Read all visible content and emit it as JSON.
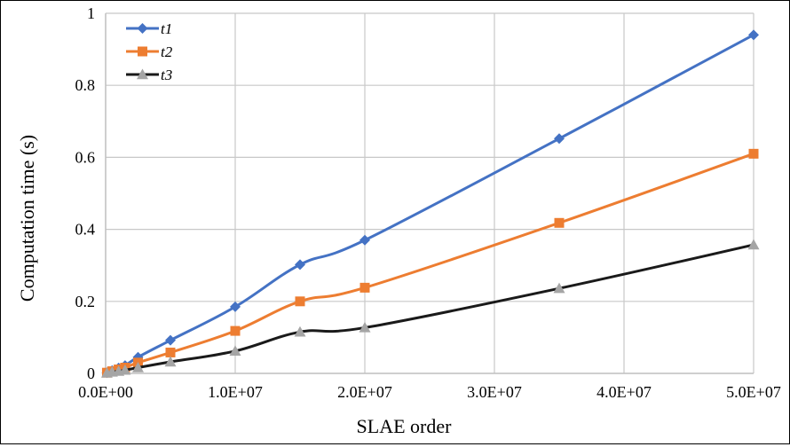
{
  "chart_data": {
    "type": "line",
    "title": "",
    "xlabel": "SLAE order",
    "ylabel": "Computation time (s)",
    "xlim": [
      0,
      50000000
    ],
    "ylim": [
      0,
      1
    ],
    "grid": true,
    "legend_position": "top-left",
    "x_tick_values": [
      0,
      10000000,
      20000000,
      30000000,
      40000000,
      50000000
    ],
    "x_tick_labels": [
      "0.0E+00",
      "1.0E+07",
      "2.0E+07",
      "3.0E+07",
      "4.0E+07",
      "5.0E+07"
    ],
    "y_tick_values": [
      0,
      0.2,
      0.4,
      0.6,
      0.8,
      1
    ],
    "y_tick_labels": [
      "0",
      "0.2",
      "0.4",
      "0.6",
      "0.8",
      "1"
    ],
    "series": [
      {
        "name": "t1",
        "color": "#4472C4",
        "marker": "diamond",
        "x": [
          100000,
          500000,
          1000000,
          1500000,
          2500000,
          5000000,
          10000000,
          15000000,
          20000000,
          35000000,
          50000000
        ],
        "y": [
          0.002,
          0.008,
          0.015,
          0.022,
          0.045,
          0.092,
          0.185,
          0.302,
          0.37,
          0.652,
          0.94
        ]
      },
      {
        "name": "t2",
        "color": "#ED7D31",
        "marker": "square",
        "x": [
          100000,
          500000,
          1000000,
          1500000,
          2500000,
          5000000,
          10000000,
          15000000,
          20000000,
          35000000,
          50000000
        ],
        "y": [
          0.002,
          0.006,
          0.011,
          0.016,
          0.03,
          0.058,
          0.118,
          0.2,
          0.238,
          0.418,
          0.61
        ]
      },
      {
        "name": "t3",
        "color": "#1A1A1A",
        "marker_color": "#A5A5A5",
        "marker": "triangle",
        "x": [
          100000,
          500000,
          1000000,
          1500000,
          2500000,
          5000000,
          10000000,
          15000000,
          20000000,
          35000000,
          50000000
        ],
        "y": [
          0.001,
          0.004,
          0.006,
          0.009,
          0.016,
          0.032,
          0.062,
          0.115,
          0.127,
          0.236,
          0.357
        ]
      }
    ]
  }
}
